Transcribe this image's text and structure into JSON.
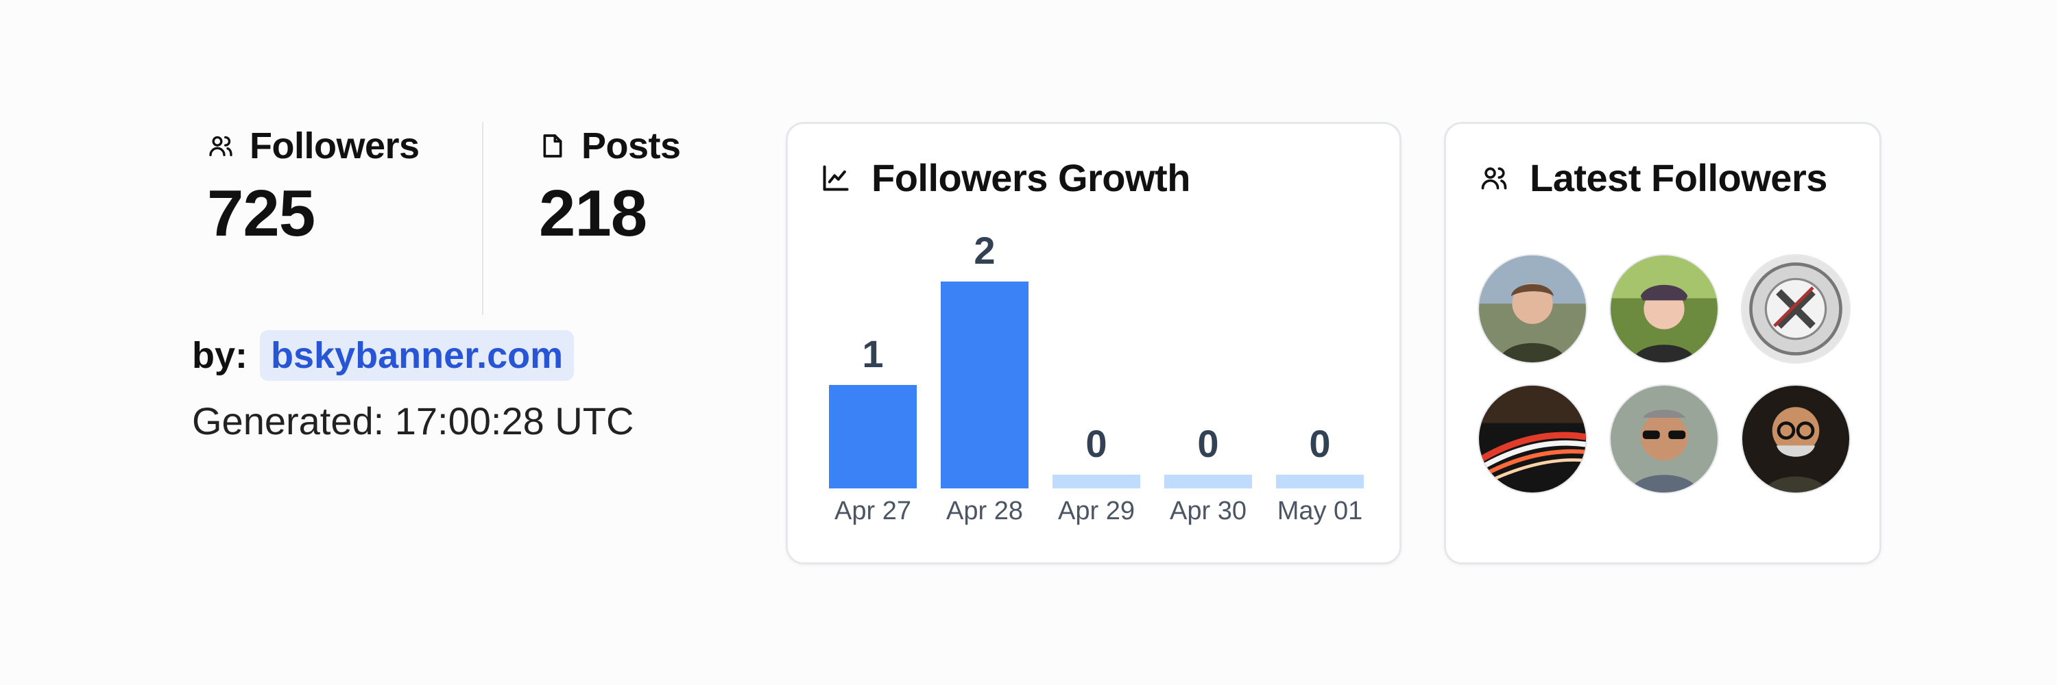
{
  "stats": {
    "followers": {
      "label": "Followers",
      "value": "725",
      "icon": "users-icon"
    },
    "posts": {
      "label": "Posts",
      "value": "218",
      "icon": "file-icon"
    }
  },
  "byline": {
    "label": "by:",
    "link": "bskybanner.com"
  },
  "generated": "Generated: 17:00:28 UTC",
  "growth_card": {
    "title": "Followers Growth",
    "icon": "line-chart-icon"
  },
  "latest_card": {
    "title": "Latest Followers",
    "icon": "users-icon"
  },
  "colors": {
    "bar": "#3b82f6",
    "bar_zero": "#bfdbfe",
    "link": "#2755d6",
    "link_bg": "#e4ecfb"
  },
  "chart_data": {
    "type": "bar",
    "title": "Followers Growth",
    "categories": [
      "Apr 27",
      "Apr 28",
      "Apr 29",
      "Apr 30",
      "May 01"
    ],
    "values": [
      1,
      2,
      0,
      0,
      0
    ],
    "xlabel": "",
    "ylabel": "",
    "ylim": [
      0,
      2
    ],
    "grid": false
  },
  "latest_followers": [
    {
      "name": "follower-avatar-1",
      "icon": "person-photo"
    },
    {
      "name": "follower-avatar-2",
      "icon": "person-photo"
    },
    {
      "name": "follower-avatar-3",
      "icon": "coin-image"
    },
    {
      "name": "follower-avatar-4",
      "icon": "highway-lights-photo"
    },
    {
      "name": "follower-avatar-5",
      "icon": "person-sunglasses-photo"
    },
    {
      "name": "follower-avatar-6",
      "icon": "cartoon-person-image"
    }
  ]
}
